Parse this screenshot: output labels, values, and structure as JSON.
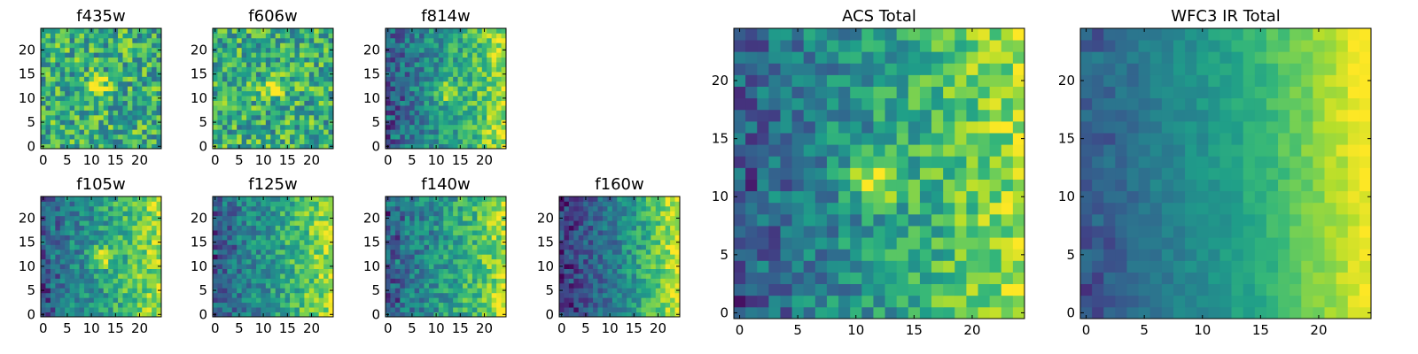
{
  "figure": {
    "colormap": "viridis",
    "colormap_stops": [
      "#440154",
      "#482878",
      "#3e4989",
      "#31688e",
      "#26828e",
      "#1f9e89",
      "#35b779",
      "#6ece58",
      "#b5de2b",
      "#fde725"
    ]
  },
  "chart_data": [
    {
      "type": "heatmap",
      "title": "f435w",
      "grid_size": 25,
      "x_ticks": [
        0,
        5,
        10,
        15,
        20
      ],
      "y_ticks": [
        0,
        5,
        10,
        15,
        20
      ],
      "xlim": [
        -0.5,
        24.5
      ],
      "ylim": [
        -0.5,
        24.5
      ],
      "pattern": "noisy-flat",
      "bright_source": [
        11.5,
        12.5
      ]
    },
    {
      "type": "heatmap",
      "title": "f606w",
      "grid_size": 25,
      "x_ticks": [
        0,
        5,
        10,
        15,
        20
      ],
      "y_ticks": [
        0,
        5,
        10,
        15,
        20
      ],
      "xlim": [
        -0.5,
        24.5
      ],
      "ylim": [
        -0.5,
        24.5
      ],
      "pattern": "noisy-flat",
      "bright_source": [
        11.5,
        12.0
      ]
    },
    {
      "type": "heatmap",
      "title": "f814w",
      "grid_size": 25,
      "x_ticks": [
        0,
        5,
        10,
        15,
        20
      ],
      "y_ticks": [
        0,
        5,
        10,
        15,
        20
      ],
      "xlim": [
        -0.5,
        24.5
      ],
      "ylim": [
        -0.5,
        24.5
      ],
      "pattern": "gradient-right",
      "bright_source": [
        12.5,
        11.5
      ]
    },
    {
      "type": "heatmap",
      "title": "f105w",
      "grid_size": 25,
      "x_ticks": [
        0,
        5,
        10,
        15,
        20
      ],
      "y_ticks": [
        0,
        5,
        10,
        15,
        20
      ],
      "xlim": [
        -0.5,
        24.5
      ],
      "ylim": [
        -0.5,
        24.5
      ],
      "pattern": "gradient-right",
      "bright_source": [
        12.0,
        12.0
      ]
    },
    {
      "type": "heatmap",
      "title": "f125w",
      "grid_size": 25,
      "x_ticks": [
        0,
        5,
        10,
        15,
        20
      ],
      "y_ticks": [
        0,
        5,
        10,
        15,
        20
      ],
      "xlim": [
        -0.5,
        24.5
      ],
      "ylim": [
        -0.5,
        24.5
      ],
      "pattern": "gradient-right",
      "bright_source": null
    },
    {
      "type": "heatmap",
      "title": "f140w",
      "grid_size": 25,
      "x_ticks": [
        0,
        5,
        10,
        15,
        20
      ],
      "y_ticks": [
        0,
        5,
        10,
        15,
        20
      ],
      "xlim": [
        -0.5,
        24.5
      ],
      "ylim": [
        -0.5,
        24.5
      ],
      "pattern": "gradient-right",
      "bright_source": null
    },
    {
      "type": "heatmap",
      "title": "f160w",
      "grid_size": 25,
      "x_ticks": [
        0,
        5,
        10,
        15,
        20
      ],
      "y_ticks": [
        0,
        5,
        10,
        15,
        20
      ],
      "xlim": [
        -0.5,
        24.5
      ],
      "ylim": [
        -0.5,
        24.5
      ],
      "pattern": "strong-gradient-right",
      "bright_source": null
    },
    {
      "type": "heatmap",
      "title": "ACS Total",
      "grid_size": 25,
      "x_ticks": [
        0,
        5,
        10,
        15,
        20
      ],
      "y_ticks": [
        0,
        5,
        10,
        15,
        20
      ],
      "xlim": [
        -0.5,
        24.5
      ],
      "ylim": [
        -0.5,
        24.5
      ],
      "pattern": "gradient-right",
      "bright_source": [
        11.5,
        11.5
      ]
    },
    {
      "type": "heatmap",
      "title": "WFC3 IR Total",
      "grid_size": 25,
      "x_ticks": [
        0,
        5,
        10,
        15,
        20
      ],
      "y_ticks": [
        0,
        5,
        10,
        15,
        20
      ],
      "xlim": [
        -0.5,
        24.5
      ],
      "ylim": [
        -0.5,
        24.5
      ],
      "pattern": "smooth-gradient-right",
      "bright_source": null
    }
  ]
}
